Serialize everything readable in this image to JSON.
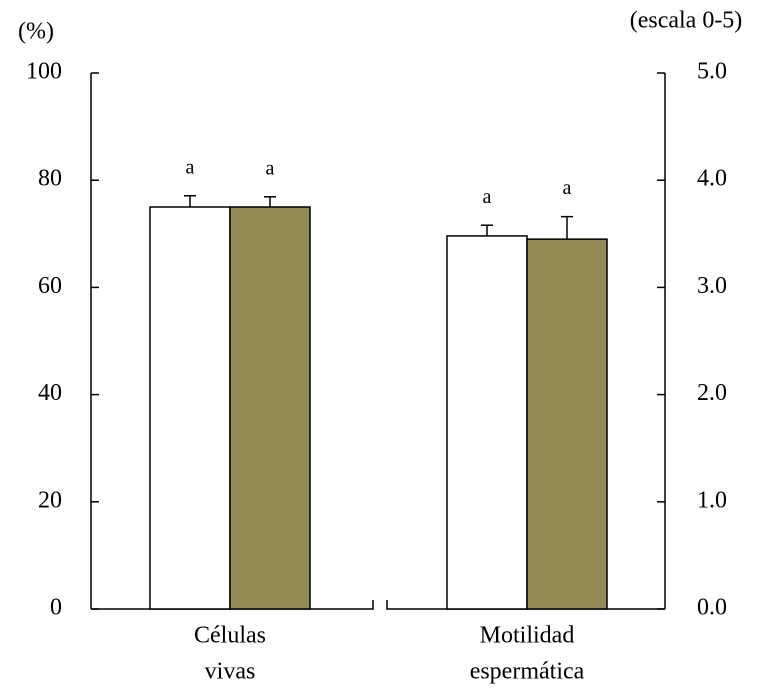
{
  "chart_data": {
    "type": "bar",
    "y_label": "(%)",
    "y2_label": "(escala 0-5)",
    "categories": [
      [
        "Células",
        "vivas"
      ],
      [
        "Motilidad",
        "espermática"
      ]
    ],
    "category_axes": [
      "y",
      "y2"
    ],
    "series": [
      {
        "color": "#ffffff",
        "values": [
          75.0,
          3.48
        ],
        "errors": [
          2.1,
          0.1
        ],
        "annotations": [
          "a",
          "a"
        ]
      },
      {
        "color": "#948a54",
        "values": [
          75.0,
          3.45
        ],
        "errors": [
          1.9,
          0.21
        ],
        "annotations": [
          "a",
          "a"
        ]
      }
    ],
    "ylim": [
      0,
      100
    ],
    "yticks": [
      0,
      20,
      40,
      60,
      80,
      100
    ],
    "y2lim": [
      0,
      5
    ],
    "y2ticks": [
      {
        "value": 0,
        "label": "0.0"
      },
      {
        "value": 1,
        "label": "1.0"
      },
      {
        "value": 2,
        "label": "2.0"
      },
      {
        "value": 3,
        "label": "3.0"
      },
      {
        "value": 4,
        "label": "4.0"
      },
      {
        "value": 5,
        "label": "5.0"
      }
    ]
  }
}
